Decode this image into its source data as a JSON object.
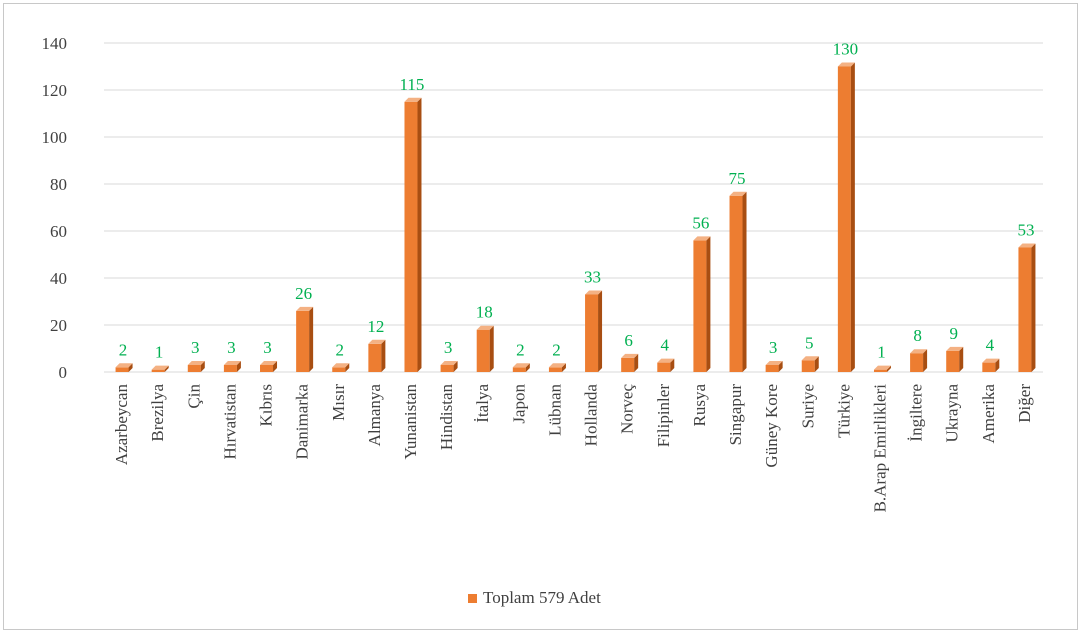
{
  "chart_data": {
    "type": "bar",
    "categories": [
      "Azarbeycan",
      "Brezilya",
      "Çin",
      "Hırvatistan",
      "Kıbrıs",
      "Danimarka",
      "Mısır",
      "Almanya",
      "Yunanistan",
      "Hindistan",
      "İtalya",
      "Japon",
      "Lübnan",
      "Hollanda",
      "Norveç",
      "Filipinler",
      "Rusya",
      "Singapur",
      "Güney Kore",
      "Suriye",
      "Türkiye",
      "B.Arap Emirlikleri",
      "İngiltere",
      "Ukrayna",
      "Amerika",
      "Diğer"
    ],
    "values": [
      2,
      1,
      3,
      3,
      3,
      26,
      2,
      12,
      115,
      3,
      18,
      2,
      2,
      33,
      6,
      4,
      56,
      75,
      3,
      5,
      130,
      1,
      8,
      9,
      4,
      53
    ],
    "ylim": [
      0,
      140
    ],
    "yticks": [
      0,
      20,
      40,
      60,
      80,
      100,
      120,
      140
    ],
    "series_name": "Toplam 579 Adet",
    "grid": true,
    "legend_position": "bottom",
    "colors": {
      "bar_front": "#ed7d31",
      "bar_side": "#a84e12",
      "bar_top": "#f4b183",
      "data_label": "#00b050",
      "grid": "#d9d9d9"
    }
  }
}
